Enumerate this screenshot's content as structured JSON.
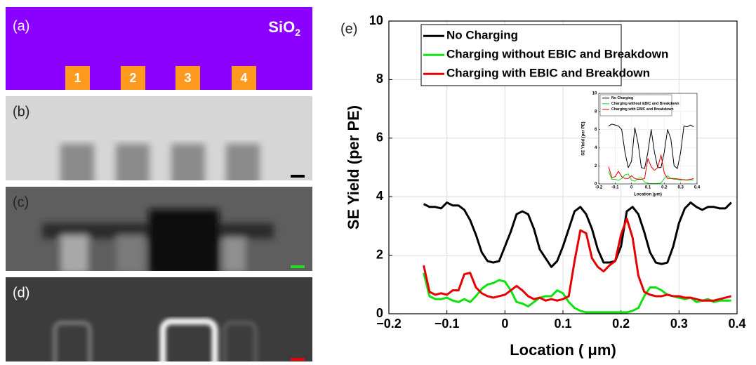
{
  "panels": [
    {
      "label": "(a)",
      "material": "SiO",
      "material_subscript": "2",
      "pads": [
        "1",
        "2",
        "3",
        "4"
      ]
    },
    {
      "label": "(b)"
    },
    {
      "label": "(c)"
    },
    {
      "label": "(d)"
    }
  ],
  "chart_data": [
    {
      "type": "line",
      "panel_label": "(e)",
      "xlabel": "Location ( μm)",
      "ylabel": "SE Yield (per PE)",
      "xlim": [
        -0.2,
        0.4
      ],
      "ylim": [
        0,
        10
      ],
      "xticks": [
        {
          "value": -0.2,
          "label": "−0.2"
        },
        {
          "value": -0.1,
          "label": "−0.1"
        },
        0,
        0.1,
        0.2,
        0.3,
        0.4
      ],
      "yticks": [
        0,
        2,
        4,
        6,
        8,
        10
      ],
      "grid": true,
      "legend": "upper left",
      "x": [
        -0.14,
        -0.13,
        -0.12,
        -0.11,
        -0.1,
        -0.09,
        -0.08,
        -0.07,
        -0.06,
        -0.05,
        -0.04,
        -0.03,
        -0.02,
        -0.01,
        0,
        0.01,
        0.02,
        0.03,
        0.04,
        0.05,
        0.06,
        0.07,
        0.08,
        0.09,
        0.1,
        0.11,
        0.12,
        0.13,
        0.14,
        0.15,
        0.16,
        0.17,
        0.18,
        0.19,
        0.2,
        0.21,
        0.22,
        0.23,
        0.24,
        0.25,
        0.26,
        0.27,
        0.28,
        0.29,
        0.3,
        0.31,
        0.32,
        0.33,
        0.34,
        0.35,
        0.36,
        0.37,
        0.38,
        0.39
      ],
      "series": [
        {
          "name": "No Charging",
          "color": "#000000",
          "values": [
            3.75,
            3.65,
            3.65,
            3.6,
            3.8,
            3.7,
            3.7,
            3.55,
            3.2,
            2.7,
            2.1,
            1.8,
            1.75,
            1.8,
            2.3,
            2.8,
            3.4,
            3.5,
            3.4,
            2.9,
            2.2,
            1.9,
            1.6,
            1.8,
            2.3,
            2.9,
            3.5,
            3.65,
            3.4,
            2.9,
            2.2,
            1.75,
            1.75,
            1.8,
            2.3,
            3.5,
            3.65,
            3.4,
            2.8,
            2.1,
            1.75,
            1.7,
            1.75,
            2.3,
            3.1,
            3.6,
            3.8,
            3.65,
            3.55,
            3.65,
            3.65,
            3.6,
            3.6,
            3.8
          ]
        },
        {
          "name": "Charging without EBIC and Breakdown",
          "color": "#11e011",
          "values": [
            1.4,
            0.6,
            0.5,
            0.5,
            0.55,
            0.45,
            0.4,
            0.5,
            0.4,
            0.6,
            0.85,
            1.0,
            1.05,
            1.15,
            1.1,
            0.8,
            0.4,
            0.35,
            0.25,
            0.4,
            0.55,
            0.6,
            0.6,
            0.8,
            0.7,
            0.4,
            0.2,
            0.1,
            0.05,
            0.05,
            0.05,
            0.05,
            0.05,
            0.05,
            0.05,
            0.05,
            0.1,
            0.2,
            0.6,
            0.9,
            0.9,
            0.8,
            0.65,
            0.6,
            0.55,
            0.5,
            0.55,
            0.4,
            0.45,
            0.5,
            0.4,
            0.45,
            0.45,
            0.45
          ]
        },
        {
          "name": "Charging with EBIC and Breakdown",
          "color": "#e60000",
          "values": [
            1.65,
            0.75,
            0.65,
            0.7,
            0.65,
            0.8,
            0.8,
            1.35,
            1.4,
            0.9,
            0.7,
            0.6,
            0.55,
            0.6,
            0.65,
            0.8,
            0.95,
            0.8,
            0.6,
            0.5,
            0.55,
            0.45,
            0.5,
            0.45,
            0.5,
            0.6,
            1.8,
            2.85,
            2.75,
            1.9,
            1.6,
            1.45,
            1.65,
            1.8,
            2.7,
            3.25,
            2.6,
            1.3,
            0.75,
            0.65,
            0.6,
            0.6,
            0.65,
            0.6,
            0.6,
            0.55,
            0.55,
            0.5,
            0.45,
            0.45,
            0.45,
            0.5,
            0.55,
            0.6
          ]
        }
      ]
    },
    {
      "type": "line",
      "xlabel": "Location (μm)",
      "ylabel": "SE Yield (per PE)",
      "xlim": [
        -0.2,
        0.4
      ],
      "ylim": [
        0,
        10
      ],
      "xticks": [
        {
          "value": -0.2,
          "label": "-0.2"
        },
        {
          "value": -0.1,
          "label": "-0.1"
        },
        0,
        0.1,
        0.2,
        0.3,
        0.4
      ],
      "yticks": [
        0,
        2,
        4,
        6,
        8,
        10
      ],
      "grid": true,
      "legend": "upper left",
      "x": [
        -0.14,
        -0.12,
        -0.1,
        -0.08,
        -0.06,
        -0.04,
        -0.02,
        0,
        0.02,
        0.04,
        0.06,
        0.08,
        0.1,
        0.12,
        0.14,
        0.16,
        0.18,
        0.2,
        0.22,
        0.24,
        0.26,
        0.28,
        0.3,
        0.32,
        0.34,
        0.36,
        0.38
      ],
      "series": [
        {
          "name": "No Charging",
          "color": "#000000",
          "values": [
            6.4,
            6.6,
            6.5,
            6.4,
            6.0,
            3.5,
            1.8,
            2.5,
            6.2,
            4.5,
            1.8,
            1.7,
            3.5,
            6.0,
            3.5,
            1.8,
            1.8,
            3.5,
            6.0,
            5.0,
            2.0,
            1.7,
            3.5,
            6.4,
            6.3,
            6.5,
            6.3
          ]
        },
        {
          "name": "Charging without EBIC and Breakdown",
          "color": "#11e011",
          "values": [
            1.4,
            0.5,
            0.5,
            0.4,
            0.6,
            1.0,
            1.1,
            0.4,
            0.3,
            0.6,
            0.7,
            0.2,
            0.05,
            0.05,
            0.05,
            0.05,
            0.1,
            0.6,
            0.9,
            0.6,
            0.5,
            0.5,
            0.4,
            0.5,
            0.4,
            0.45,
            0.45
          ]
        },
        {
          "name": "Charging with EBIC and Breakdown",
          "color": "#e60000",
          "values": [
            1.9,
            0.7,
            0.8,
            1.4,
            0.8,
            0.6,
            0.6,
            0.9,
            0.6,
            0.5,
            0.5,
            0.6,
            2.8,
            1.9,
            1.5,
            1.8,
            3.2,
            1.2,
            0.6,
            0.6,
            0.6,
            0.55,
            0.5,
            0.45,
            0.45,
            0.5,
            0.6
          ]
        }
      ]
    }
  ]
}
